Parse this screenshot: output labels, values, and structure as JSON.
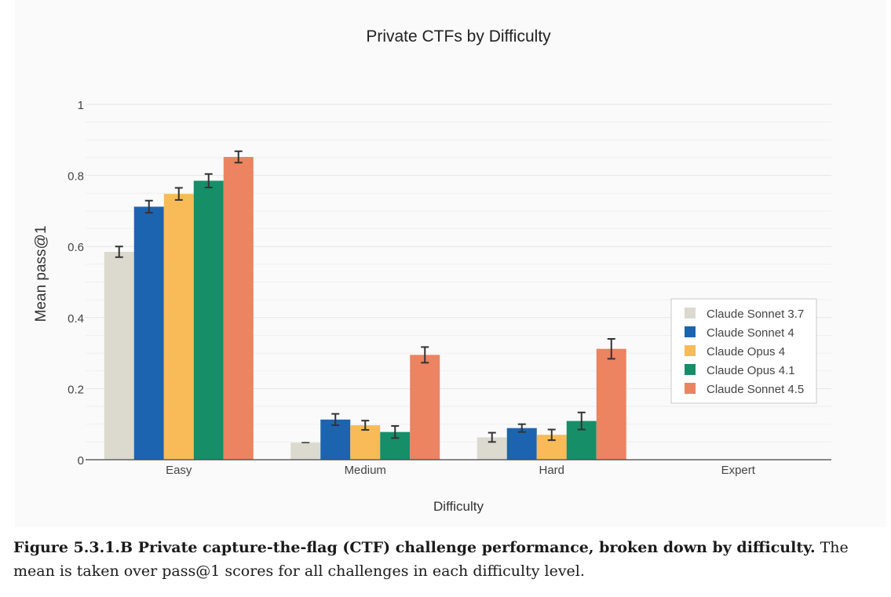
{
  "chart_data": {
    "type": "bar",
    "title": "Private CTFs by Difficulty",
    "xlabel": "Difficulty",
    "ylabel": "Mean pass@1",
    "ylim": [
      0,
      1
    ],
    "yticks": [
      0,
      0.2,
      0.4,
      0.6,
      0.8,
      1
    ],
    "ytick_labels": [
      "0",
      "0.2",
      "0.4",
      "0.6",
      "0.8",
      "1"
    ],
    "grid": true,
    "legend_position": "right",
    "categories": [
      "Easy",
      "Medium",
      "Hard",
      "Expert"
    ],
    "series": [
      {
        "name": "Claude Sonnet 3.7",
        "color": "#dcd9cf",
        "values": [
          0.585,
          0.048,
          0.063,
          0.0
        ],
        "errors": [
          0.015,
          0.0,
          0.013,
          0.0
        ]
      },
      {
        "name": "Claude Sonnet 4",
        "color": "#1d64b0",
        "values": [
          0.712,
          0.113,
          0.089,
          0.0
        ],
        "errors": [
          0.017,
          0.016,
          0.011,
          0.0
        ]
      },
      {
        "name": "Claude Opus 4",
        "color": "#f8bb57",
        "values": [
          0.748,
          0.097,
          0.07,
          0.0
        ],
        "errors": [
          0.017,
          0.013,
          0.015,
          0.0
        ]
      },
      {
        "name": "Claude Opus 4.1",
        "color": "#168e68",
        "values": [
          0.785,
          0.078,
          0.109,
          0.0
        ],
        "errors": [
          0.019,
          0.017,
          0.024,
          0.0
        ]
      },
      {
        "name": "Claude Sonnet 4.5",
        "color": "#ec8361",
        "values": [
          0.852,
          0.295,
          0.312,
          0.0
        ],
        "errors": [
          0.016,
          0.022,
          0.028,
          0.0
        ]
      }
    ]
  },
  "caption": {
    "bold": "Figure 5.3.1.B Private capture-the-flag (CTF) challenge performance, broken down by difficulty.",
    "text": " The mean is taken over pass@1 scores for all challenges in each difficulty level."
  }
}
